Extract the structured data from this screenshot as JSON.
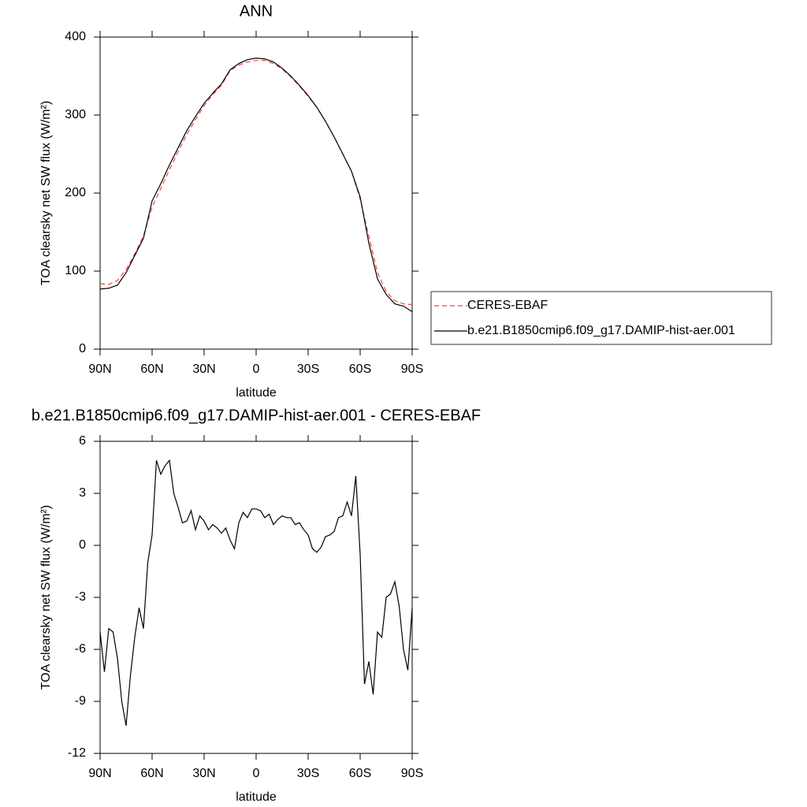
{
  "chart_data": [
    {
      "type": "line",
      "title": "ANN",
      "xlabel": "latitude",
      "ylabel": "TOA clearsky net SW flux (W/m²)",
      "x": [
        90,
        85,
        80,
        75,
        70,
        65,
        60,
        55,
        50,
        45,
        40,
        35,
        30,
        25,
        20,
        15,
        10,
        5,
        0,
        -5,
        -10,
        -15,
        -20,
        -25,
        -30,
        -35,
        -40,
        -45,
        -50,
        -55,
        -60,
        -65,
        -70,
        -75,
        -80,
        -85,
        -90
      ],
      "series": [
        {
          "name": "CERES-EBAF",
          "color": "#ff4040",
          "dash": true,
          "values": [
            84,
            83,
            88,
            102,
            122,
            145,
            182,
            206,
            230,
            253,
            275,
            294,
            312,
            326,
            338,
            357,
            364,
            368,
            370,
            370,
            366,
            359,
            349,
            337,
            324,
            310,
            292,
            272,
            250,
            228,
            192,
            145,
            98,
            74,
            62,
            58,
            57
          ]
        },
        {
          "name": "b.e21.B1850cmip6.f09_g17.DAMIP-hist-aer.001",
          "color": "#000000",
          "dash": false,
          "values": [
            77,
            78,
            82,
            98,
            120,
            142,
            190,
            212,
            236,
            258,
            280,
            298,
            315,
            328,
            340,
            358,
            366,
            371,
            373,
            372,
            368,
            360,
            350,
            338,
            325,
            310,
            292,
            272,
            250,
            228,
            195,
            136,
            90,
            70,
            58,
            55,
            48
          ]
        }
      ],
      "xlim": [
        90,
        -90
      ],
      "xticks": [
        {
          "value": 90,
          "label": "90N"
        },
        {
          "value": 60,
          "label": "60N"
        },
        {
          "value": 30,
          "label": "30N"
        },
        0,
        {
          "value": -30,
          "label": "30S"
        },
        {
          "value": -60,
          "label": "60S"
        },
        {
          "value": -90,
          "label": "90S"
        }
      ],
      "ylim": [
        0,
        400
      ],
      "yticks": [
        0,
        100,
        200,
        300,
        400
      ],
      "legend": "outside right"
    },
    {
      "type": "line",
      "title": "b.e21.B1850cmip6.f09_g17.DAMIP-hist-aer.001 - CERES-EBAF",
      "xlabel": "latitude",
      "ylabel": "TOA clearsky net SW flux (W/m²)",
      "x": [
        90,
        87.5,
        85,
        82.5,
        80,
        77.5,
        75,
        72.5,
        70,
        67.5,
        65,
        62.5,
        60,
        57.5,
        55,
        52.5,
        50,
        47.5,
        45,
        42.5,
        40,
        37.5,
        35,
        32.5,
        30,
        27.5,
        25,
        22.5,
        20,
        17.5,
        15,
        12.5,
        10,
        7.5,
        5,
        2.5,
        0,
        -2.5,
        -5,
        -7.5,
        -10,
        -12.5,
        -15,
        -17.5,
        -20,
        -22.5,
        -25,
        -27.5,
        -30,
        -32.5,
        -35,
        -37.5,
        -40,
        -42.5,
        -45,
        -47.5,
        -50,
        -52.5,
        -55,
        -57.5,
        -60,
        -62.5,
        -65,
        -67.5,
        -70,
        -72.5,
        -75,
        -77.5,
        -80,
        -82.5,
        -85,
        -87.5,
        -90
      ],
      "series": [
        {
          "color": "#000000",
          "dash": false,
          "values": [
            -5.0,
            -7.3,
            -4.8,
            -5.0,
            -6.5,
            -9.0,
            -10.4,
            -7.5,
            -5.3,
            -3.6,
            -4.8,
            -1.0,
            0.6,
            4.9,
            4.1,
            4.6,
            4.9,
            3.0,
            2.2,
            1.3,
            1.4,
            2.0,
            0.9,
            1.7,
            1.4,
            0.9,
            1.2,
            1.0,
            0.7,
            1.0,
            0.3,
            -0.2,
            1.3,
            1.9,
            1.6,
            2.1,
            2.1,
            2.0,
            1.6,
            1.8,
            1.2,
            1.5,
            1.7,
            1.6,
            1.6,
            1.2,
            1.3,
            0.9,
            0.6,
            -0.2,
            -0.4,
            -0.1,
            0.5,
            0.6,
            0.8,
            1.6,
            1.7,
            2.5,
            1.7,
            4.0,
            -0.5,
            -8.0,
            -6.7,
            -8.6,
            -5.0,
            -5.3,
            -3.0,
            -2.8,
            -2.1,
            -3.5,
            -6.0,
            -7.2,
            -3.6
          ]
        }
      ],
      "xlim": [
        90,
        -90
      ],
      "xticks": [
        {
          "value": 90,
          "label": "90N"
        },
        {
          "value": 60,
          "label": "60N"
        },
        {
          "value": 30,
          "label": "30N"
        },
        0,
        {
          "value": -30,
          "label": "30S"
        },
        {
          "value": -60,
          "label": "60S"
        },
        {
          "value": -90,
          "label": "90S"
        }
      ],
      "ylim": [
        -12,
        6
      ],
      "yticks": [
        -12,
        -9,
        -6,
        -3,
        0,
        3,
        6
      ]
    }
  ]
}
